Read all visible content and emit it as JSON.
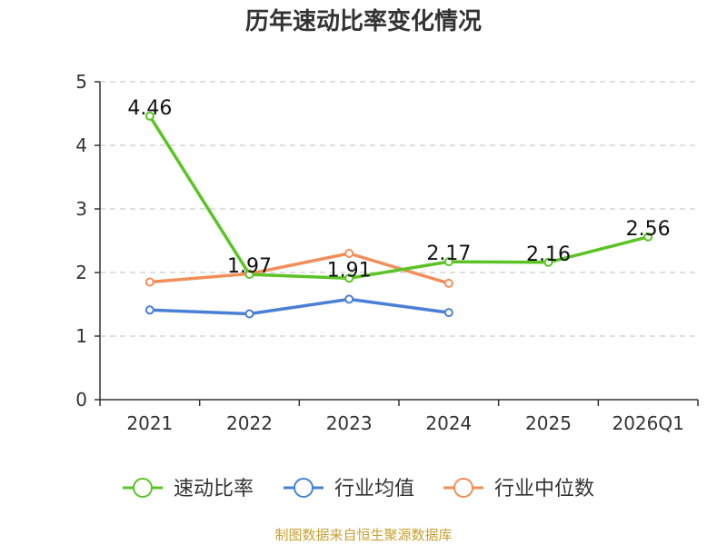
{
  "chart_data": {
    "type": "line",
    "title": "历年速动比率变化情况",
    "xlabel": "",
    "ylabel": "",
    "categories": [
      "2021",
      "2022",
      "2023",
      "2024",
      "2025",
      "2026Q1"
    ],
    "ylim": [
      0,
      5
    ],
    "yticks": [
      "0",
      "1",
      "2",
      "3",
      "4",
      "5"
    ],
    "grid": true,
    "legend_position": "bottom",
    "series": [
      {
        "name": "速动比率",
        "color": "#5bc424",
        "values": [
          4.46,
          1.97,
          1.91,
          2.17,
          2.16,
          2.56
        ],
        "labels": [
          "4.46",
          "1.97",
          "1.91",
          "2.17",
          "2.16",
          "2.56"
        ]
      },
      {
        "name": "行业均值",
        "color": "#4a7fd6",
        "values": [
          1.41,
          1.35,
          1.58,
          1.37,
          null,
          null
        ]
      },
      {
        "name": "行业中位数",
        "color": "#f28e5a",
        "values": [
          1.85,
          1.98,
          2.3,
          1.83,
          null,
          null
        ]
      }
    ]
  },
  "source": "制图数据来自恒生聚源数据库"
}
